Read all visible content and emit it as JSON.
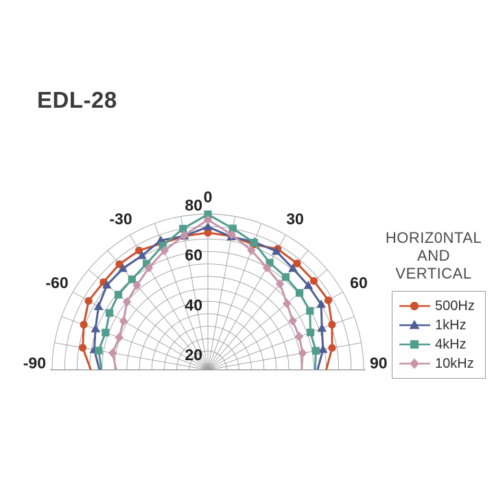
{
  "page": {
    "title": "EDL-28"
  },
  "legend": {
    "title_lines": [
      "HORIZ0NTAL",
      "AND",
      "VERTICAL"
    ],
    "items": [
      {
        "label": "500Hz",
        "marker": "circle",
        "color": "#cc512f"
      },
      {
        "label": "1kHz",
        "marker": "triangle",
        "color": "#4f5f96"
      },
      {
        "label": "4kHz",
        "marker": "square",
        "color": "#529e8e"
      },
      {
        "label": "10kHz",
        "marker": "diamond",
        "color": "#c795a9"
      }
    ]
  },
  "chart_data": {
    "type": "polar-line",
    "title": "EDL-28",
    "subtitle": "HORIZ0NTAL AND VERTICAL",
    "angle_unit": "degrees",
    "angle_range": [
      -90,
      90
    ],
    "angle_step": 10,
    "angle_tick_labels": [
      -90,
      -60,
      -30,
      0,
      30,
      60,
      90
    ],
    "radial_axis": {
      "ring_min": 20,
      "ring_max": 80,
      "ring_step": 5,
      "labeled_rings": [
        20,
        40,
        60,
        80
      ]
    },
    "grid": true,
    "legend_position": "right",
    "angles": [
      -90,
      -80,
      -70,
      -60,
      -50,
      -40,
      -30,
      -20,
      -10,
      0,
      10,
      20,
      30,
      40,
      50,
      60,
      70,
      80,
      90
    ],
    "series": [
      {
        "name": "500Hz",
        "marker": "circle",
        "color": "#cc512f",
        "values": [
          64.5,
          68.5,
          70.5,
          72.8,
          72.2,
          72.8,
          72.8,
          71.5,
          72,
          72.5,
          72,
          71,
          73.5,
          73.2,
          73,
          73.3,
          70.5,
          68.1,
          65
        ]
      },
      {
        "name": "1kHz",
        "marker": "triangle",
        "color": "#4f5f96",
        "values": [
          61,
          63.8,
          65.5,
          68.2,
          70.4,
          70.6,
          70.4,
          72.8,
          72,
          74.9,
          71.7,
          72.1,
          72.4,
          70.6,
          70.1,
          70,
          66.2,
          64.4,
          61.5
        ]
      },
      {
        "name": "4kHz",
        "marker": "square",
        "color": "#529e8e",
        "values": [
          60.2,
          62,
          61.2,
          63.1,
          64.4,
          64.9,
          66.7,
          70.5,
          75,
          79.9,
          75.1,
          71.8,
          67.1,
          66.1,
          65.5,
          64.8,
          61.3,
          61.5,
          60.5
        ]
      },
      {
        "name": "10kHz",
        "marker": "diamond",
        "color": "#c795a9",
        "values": [
          54.3,
          56.3,
          55.4,
          56.6,
          59.9,
          61.8,
          64.8,
          68.4,
          72.3,
          77.7,
          72.6,
          68.5,
          64.8,
          62.5,
          58.9,
          56.8,
          56.5,
          56.1,
          55.1
        ]
      }
    ]
  }
}
